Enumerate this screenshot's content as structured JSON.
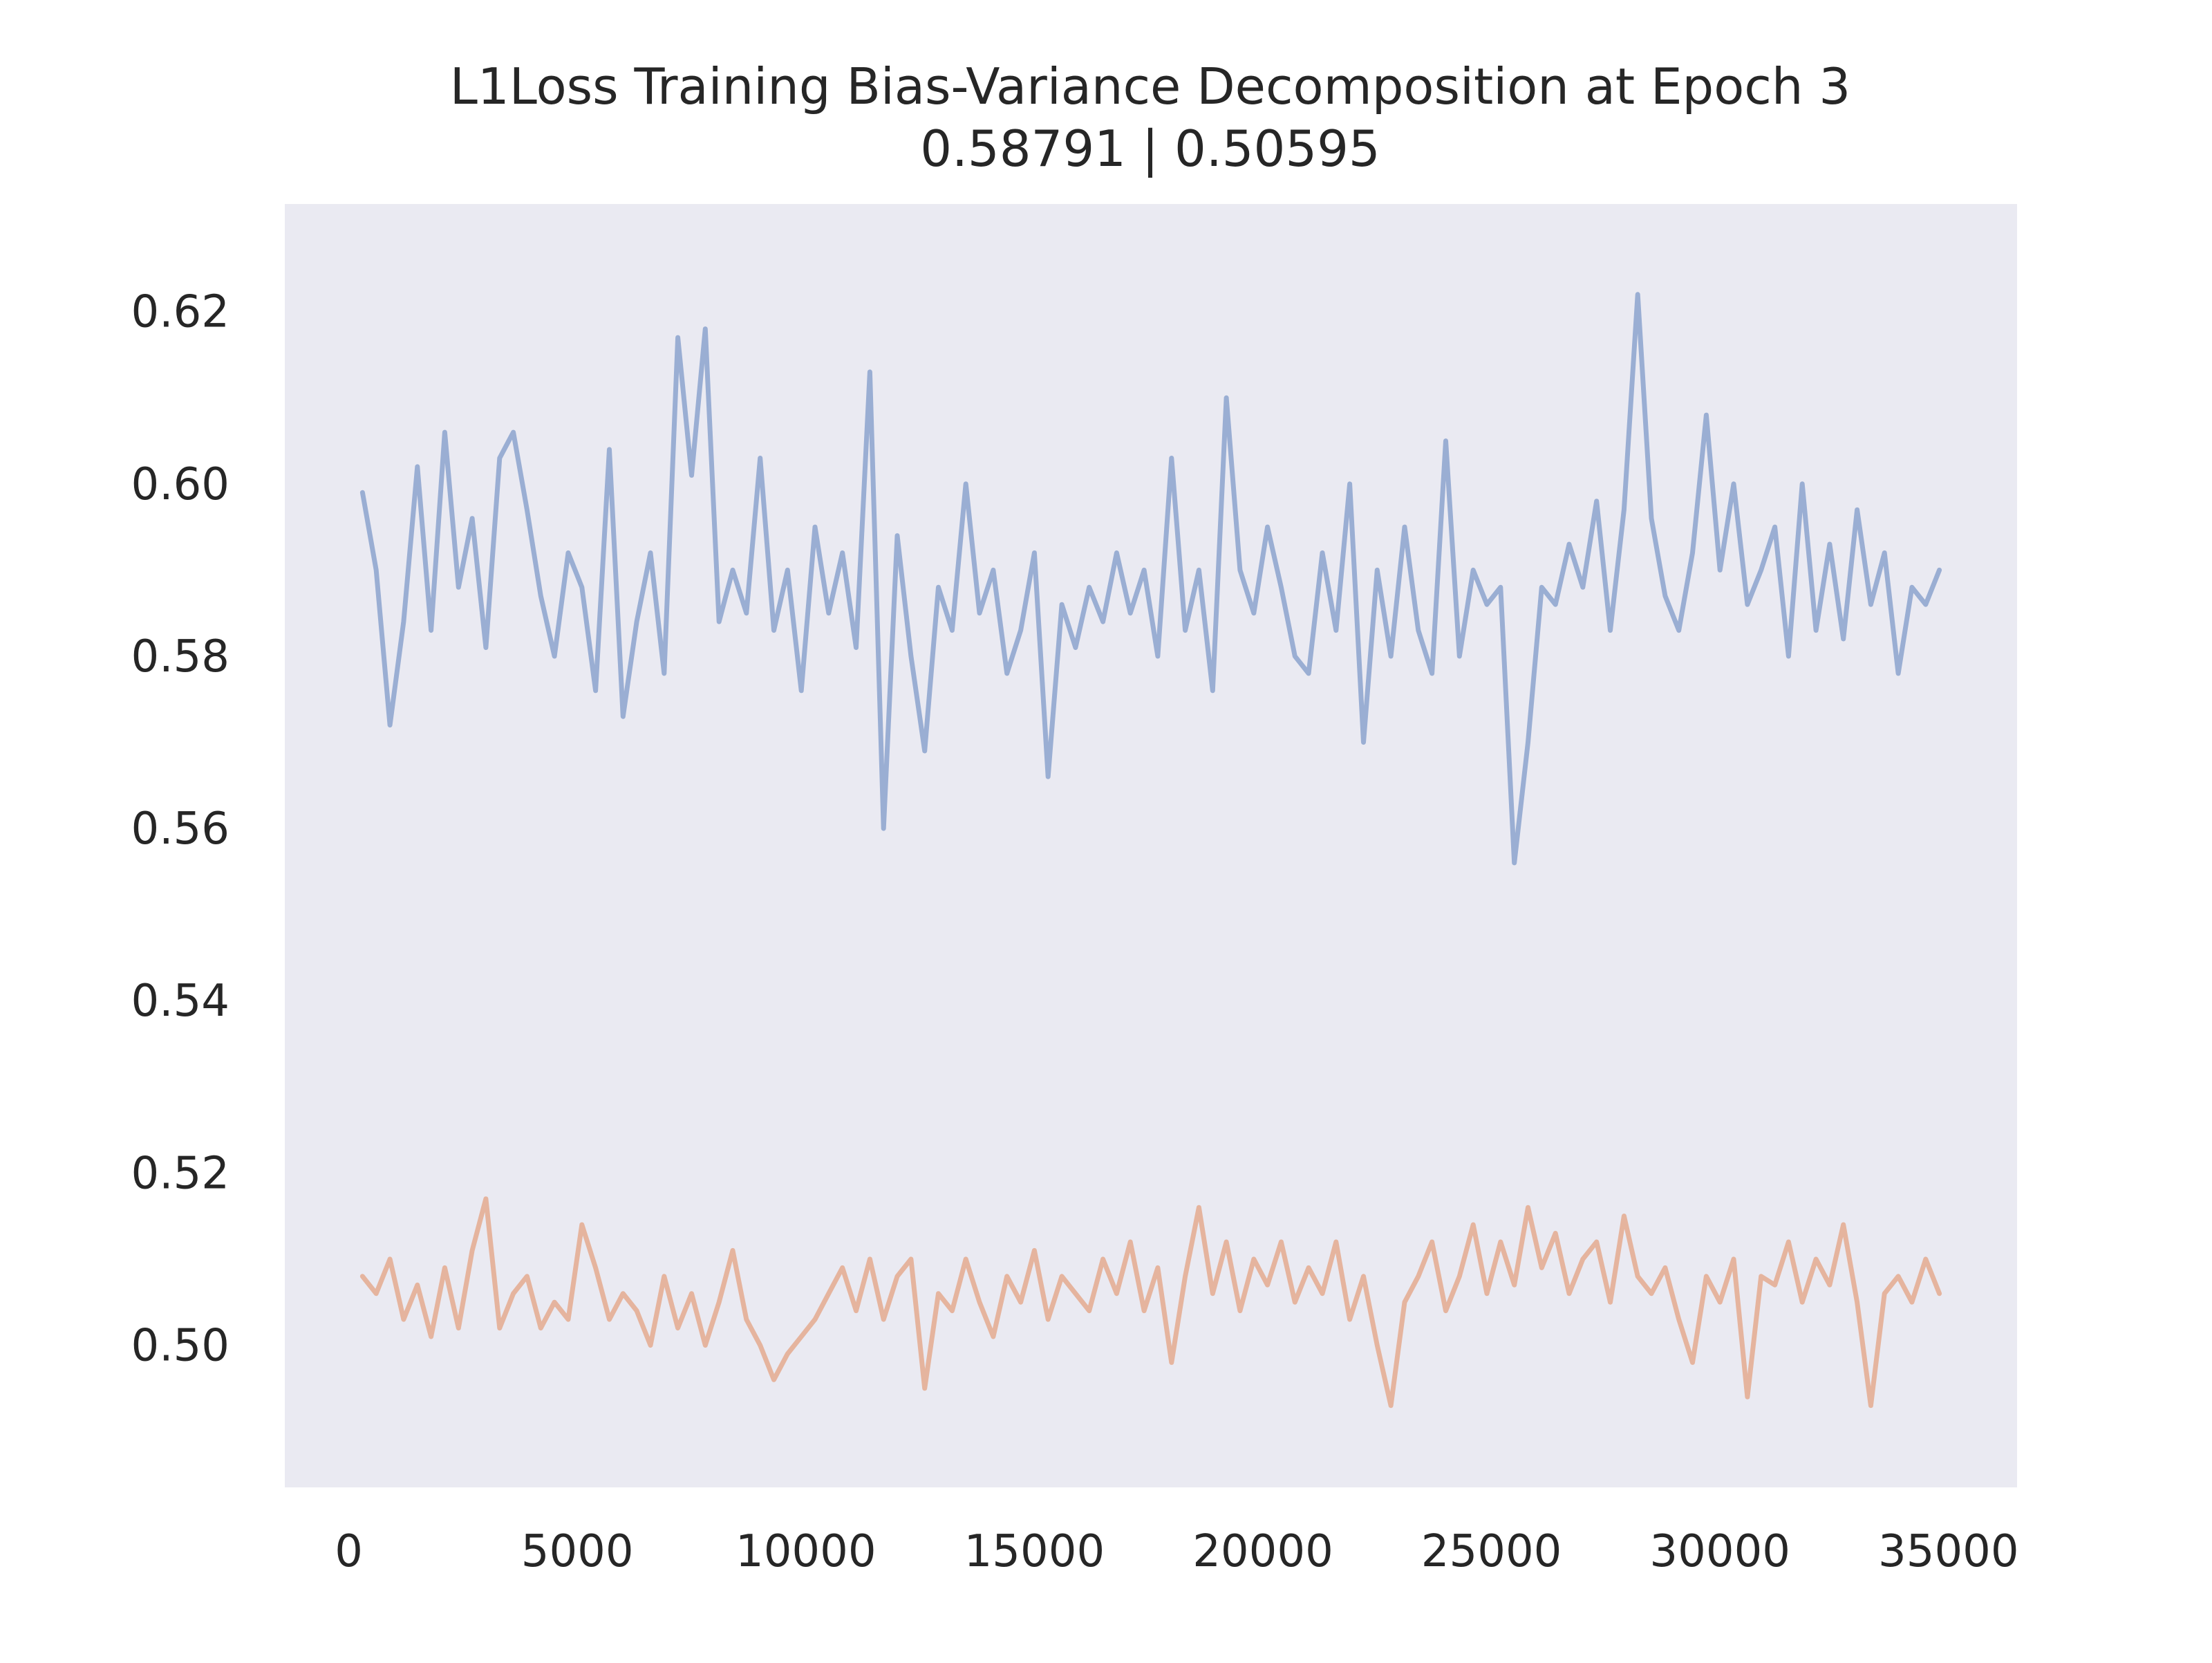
{
  "chart_data": {
    "type": "line",
    "title": "L1Loss Training Bias-Variance Decomposition at Epoch 3",
    "subtitle": "0.58791 | 0.50595",
    "xlabel": "",
    "ylabel": "",
    "xlim": [
      -1400,
      36500
    ],
    "ylim": [
      0.4835,
      0.6325
    ],
    "grid": false,
    "legend": "none",
    "background_color": "#eaeaf2",
    "x_ticks": [
      {
        "value": 0,
        "label": "0"
      },
      {
        "value": 5000,
        "label": "5000"
      },
      {
        "value": 10000,
        "label": "10000"
      },
      {
        "value": 15000,
        "label": "15000"
      },
      {
        "value": 20000,
        "label": "20000"
      },
      {
        "value": 25000,
        "label": "25000"
      },
      {
        "value": 30000,
        "label": "30000"
      },
      {
        "value": 35000,
        "label": "35000"
      }
    ],
    "y_ticks": [
      {
        "value": 0.5,
        "label": "0.50"
      },
      {
        "value": 0.52,
        "label": "0.52"
      },
      {
        "value": 0.54,
        "label": "0.54"
      },
      {
        "value": 0.56,
        "label": "0.56"
      },
      {
        "value": 0.58,
        "label": "0.58"
      },
      {
        "value": 0.6,
        "label": "0.60"
      },
      {
        "value": 0.62,
        "label": "0.62"
      }
    ],
    "series": [
      {
        "color": "#9aaed3",
        "x": [
          300,
          600,
          900,
          1200,
          1500,
          1800,
          2100,
          2400,
          2700,
          3000,
          3300,
          3600,
          3900,
          4200,
          4500,
          4800,
          5100,
          5400,
          5700,
          6000,
          6300,
          6600,
          6900,
          7200,
          7500,
          7800,
          8100,
          8400,
          8700,
          9000,
          9300,
          9600,
          9900,
          10200,
          10500,
          10800,
          11100,
          11400,
          11700,
          12000,
          12300,
          12600,
          12900,
          13200,
          13500,
          13800,
          14100,
          14400,
          14700,
          15000,
          15300,
          15600,
          15900,
          16200,
          16500,
          16800,
          17100,
          17400,
          17700,
          18000,
          18300,
          18600,
          18900,
          19200,
          19500,
          19800,
          20100,
          20400,
          20700,
          21000,
          21300,
          21600,
          21900,
          22200,
          22500,
          22800,
          23100,
          23400,
          23700,
          24000,
          24300,
          24600,
          24900,
          25200,
          25500,
          25800,
          26100,
          26400,
          26700,
          27000,
          27300,
          27600,
          27900,
          28200,
          28500,
          28800,
          29100,
          29400,
          29700,
          30000,
          30300,
          30600,
          30900,
          31200,
          31500,
          31800,
          32100,
          32400,
          32700,
          33000,
          33300,
          33600,
          33900,
          34200,
          34500,
          34800
        ],
        "y": [
          0.599,
          0.59,
          0.572,
          0.584,
          0.602,
          0.583,
          0.606,
          0.588,
          0.596,
          0.581,
          0.603,
          0.606,
          0.597,
          0.587,
          0.58,
          0.592,
          0.588,
          0.576,
          0.604,
          0.573,
          0.584,
          0.592,
          0.578,
          0.617,
          0.601,
          0.618,
          0.584,
          0.59,
          0.585,
          0.603,
          0.583,
          0.59,
          0.576,
          0.595,
          0.585,
          0.592,
          0.581,
          0.613,
          0.56,
          0.594,
          0.58,
          0.569,
          0.588,
          0.583,
          0.6,
          0.585,
          0.59,
          0.578,
          0.583,
          0.592,
          0.566,
          0.586,
          0.581,
          0.588,
          0.584,
          0.592,
          0.585,
          0.59,
          0.58,
          0.603,
          0.583,
          0.59,
          0.576,
          0.61,
          0.59,
          0.585,
          0.595,
          0.588,
          0.58,
          0.578,
          0.592,
          0.583,
          0.6,
          0.57,
          0.59,
          0.58,
          0.595,
          0.583,
          0.578,
          0.605,
          0.58,
          0.59,
          0.586,
          0.588,
          0.556,
          0.57,
          0.588,
          0.586,
          0.593,
          0.588,
          0.598,
          0.583,
          0.597,
          0.622,
          0.596,
          0.587,
          0.583,
          0.592,
          0.608,
          0.59,
          0.6,
          0.586,
          0.59,
          0.595,
          0.58,
          0.6,
          0.583,
          0.593,
          0.582,
          0.597,
          0.586,
          0.592,
          0.578,
          0.588,
          0.586,
          0.59
        ]
      },
      {
        "color": "#e5b49e",
        "x": [
          300,
          600,
          900,
          1200,
          1500,
          1800,
          2100,
          2400,
          2700,
          3000,
          3300,
          3600,
          3900,
          4200,
          4500,
          4800,
          5100,
          5400,
          5700,
          6000,
          6300,
          6600,
          6900,
          7200,
          7500,
          7800,
          8100,
          8400,
          8700,
          9000,
          9300,
          9600,
          9900,
          10200,
          10500,
          10800,
          11100,
          11400,
          11700,
          12000,
          12300,
          12600,
          12900,
          13200,
          13500,
          13800,
          14100,
          14400,
          14700,
          15000,
          15300,
          15600,
          15900,
          16200,
          16500,
          16800,
          17100,
          17400,
          17700,
          18000,
          18300,
          18600,
          18900,
          19200,
          19500,
          19800,
          20100,
          20400,
          20700,
          21000,
          21300,
          21600,
          21900,
          22200,
          22500,
          22800,
          23100,
          23400,
          23700,
          24000,
          24300,
          24600,
          24900,
          25200,
          25500,
          25800,
          26100,
          26400,
          26700,
          27000,
          27300,
          27600,
          27900,
          28200,
          28500,
          28800,
          29100,
          29400,
          29700,
          30000,
          30300,
          30600,
          30900,
          31200,
          31500,
          31800,
          32100,
          32400,
          32700,
          33000,
          33300,
          33600,
          33900,
          34200,
          34500,
          34800
        ],
        "y": [
          0.508,
          0.506,
          0.51,
          0.503,
          0.507,
          0.501,
          0.509,
          0.502,
          0.511,
          0.517,
          0.502,
          0.506,
          0.508,
          0.502,
          0.505,
          0.503,
          0.514,
          0.509,
          0.503,
          0.506,
          0.504,
          0.5,
          0.508,
          0.502,
          0.506,
          0.5,
          0.505,
          0.511,
          0.503,
          0.5,
          0.496,
          0.499,
          0.501,
          0.503,
          0.506,
          0.509,
          0.504,
          0.51,
          0.503,
          0.508,
          0.51,
          0.495,
          0.506,
          0.504,
          0.51,
          0.505,
          0.501,
          0.508,
          0.505,
          0.511,
          0.503,
          0.508,
          0.506,
          0.504,
          0.51,
          0.506,
          0.512,
          0.504,
          0.509,
          0.498,
          0.508,
          0.516,
          0.506,
          0.512,
          0.504,
          0.51,
          0.507,
          0.512,
          0.505,
          0.509,
          0.506,
          0.512,
          0.503,
          0.508,
          0.5,
          0.493,
          0.505,
          0.508,
          0.512,
          0.504,
          0.508,
          0.514,
          0.506,
          0.512,
          0.507,
          0.516,
          0.509,
          0.513,
          0.506,
          0.51,
          0.512,
          0.505,
          0.515,
          0.508,
          0.506,
          0.509,
          0.503,
          0.498,
          0.508,
          0.505,
          0.51,
          0.494,
          0.508,
          0.507,
          0.512,
          0.505,
          0.51,
          0.507,
          0.514,
          0.505,
          0.493,
          0.506,
          0.508,
          0.505,
          0.51,
          0.506
        ]
      }
    ]
  }
}
